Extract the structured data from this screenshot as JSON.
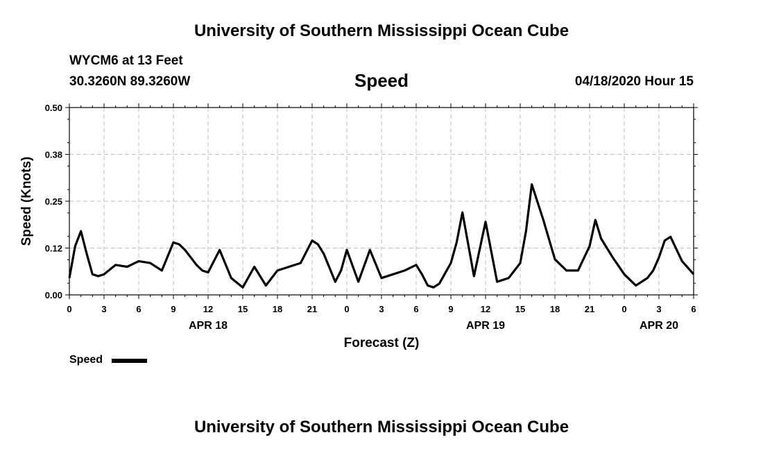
{
  "header": {
    "title_top": "University of Southern Mississippi Ocean Cube",
    "station": "WYCM6 at 13 Feet",
    "coords": "30.3260N 89.3260W",
    "variable": "Speed",
    "datetime": "04/18/2020 Hour 15"
  },
  "footer": {
    "title_bottom": "University of Southern Mississippi Ocean Cube"
  },
  "legend": {
    "label": "Speed"
  },
  "colors": {
    "line": "#000000",
    "grid": "#bfbfbf",
    "axis": "#000000"
  },
  "chart_data": {
    "type": "line",
    "title": "Speed",
    "xlabel": "Forecast (Z)",
    "ylabel": "Speed (Knots)",
    "ylim": [
      0,
      0.5
    ],
    "xlim": [
      0,
      54
    ],
    "grid": true,
    "legend_position": "bottom-left",
    "y_ticks": [
      "0.00",
      "0.12",
      "0.25",
      "0.38",
      "0.50"
    ],
    "x_ticks": [
      "0",
      "3",
      "6",
      "9",
      "12",
      "15",
      "18",
      "21",
      "0",
      "3",
      "6",
      "9",
      "12",
      "15",
      "18",
      "21",
      "0",
      "3",
      "6"
    ],
    "date_labels": [
      {
        "label": "APR 18",
        "at_hour": 12
      },
      {
        "label": "APR 19",
        "at_hour": 36
      },
      {
        "label": "APR 20",
        "at_hour": 51
      }
    ],
    "series": [
      {
        "name": "Speed",
        "x_hours": [
          0,
          0.5,
          1,
          1.5,
          2,
          2.5,
          3,
          4,
          5,
          6,
          7,
          8,
          9,
          9.5,
          10,
          11,
          11.5,
          12,
          13,
          14,
          15,
          16,
          17,
          18,
          19,
          20,
          21,
          21.5,
          22,
          23,
          23.5,
          24,
          25,
          26,
          27,
          28,
          29,
          30,
          30.5,
          31,
          31.5,
          32,
          33,
          33.5,
          34,
          35,
          36,
          37,
          38,
          39,
          39.5,
          40,
          41,
          42,
          43,
          44,
          45,
          45.5,
          46,
          47,
          48,
          49,
          50,
          50.5,
          51,
          51.5,
          52,
          53,
          54
        ],
        "values": [
          0.045,
          0.13,
          0.17,
          0.11,
          0.055,
          0.05,
          0.055,
          0.08,
          0.075,
          0.09,
          0.085,
          0.065,
          0.14,
          0.135,
          0.12,
          0.08,
          0.065,
          0.06,
          0.12,
          0.045,
          0.02,
          0.075,
          0.025,
          0.065,
          0.075,
          0.085,
          0.145,
          0.135,
          0.11,
          0.035,
          0.065,
          0.12,
          0.035,
          0.12,
          0.045,
          0.055,
          0.065,
          0.08,
          0.055,
          0.025,
          0.02,
          0.03,
          0.085,
          0.14,
          0.22,
          0.05,
          0.195,
          0.035,
          0.045,
          0.085,
          0.17,
          0.295,
          0.2,
          0.095,
          0.065,
          0.065,
          0.13,
          0.2,
          0.15,
          0.1,
          0.055,
          0.025,
          0.045,
          0.065,
          0.1,
          0.145,
          0.155,
          0.09,
          0.055
        ]
      }
    ]
  }
}
